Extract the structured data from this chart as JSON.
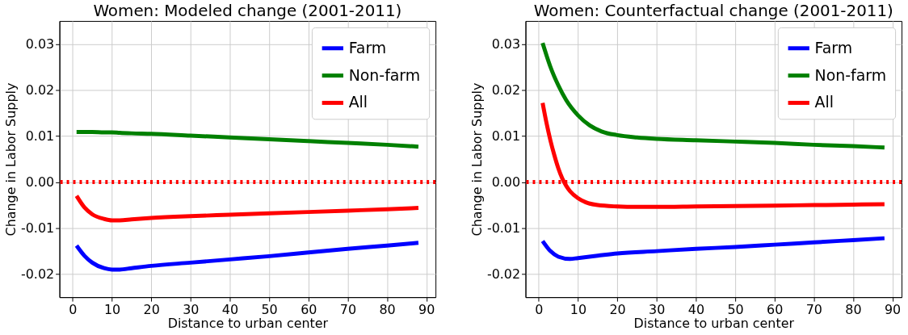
{
  "chart_data": [
    {
      "type": "line",
      "title": "Women: Modeled change (2001-2011)",
      "xlabel": "Distance to urban center",
      "ylabel": "Change in Labor Supply",
      "x": [
        1,
        3,
        5,
        8,
        10,
        12,
        15,
        20,
        30,
        40,
        50,
        60,
        70,
        80,
        88
      ],
      "series": [
        {
          "name": "Farm",
          "color": "#0000ff",
          "values": [
            -0.0138,
            -0.016,
            -0.0175,
            -0.0187,
            -0.019,
            -0.019,
            -0.0187,
            -0.0182,
            -0.0175,
            -0.0168,
            -0.0161,
            -0.0153,
            -0.0145,
            -0.0138,
            -0.0132
          ]
        },
        {
          "name": "Non-farm",
          "color": "#008000",
          "values": [
            0.0109,
            0.0109,
            0.0109,
            0.0108,
            0.0108,
            0.0107,
            0.0106,
            0.0105,
            0.0101,
            0.0097,
            0.0093,
            0.0089,
            0.0085,
            0.0081,
            0.0077
          ]
        },
        {
          "name": "All",
          "color": "#ff0000",
          "values": [
            -0.003,
            -0.0055,
            -0.007,
            -0.008,
            -0.0083,
            -0.0083,
            -0.0081,
            -0.0078,
            -0.0074,
            -0.0071,
            -0.0068,
            -0.0065,
            -0.0062,
            -0.0059,
            -0.0056
          ]
        }
      ],
      "xlim": [
        -3.35,
        92.35
      ],
      "ylim": [
        -0.025,
        0.035
      ],
      "xticks": [
        0,
        10,
        20,
        30,
        40,
        50,
        60,
        70,
        80,
        90
      ],
      "yticks": [
        -0.02,
        -0.01,
        {
          "value": 0,
          "label": "0.00"
        },
        0.01,
        0.02,
        0.03
      ],
      "ref_lines": [
        {
          "axis": "y",
          "value": 0,
          "color": "#ff0000",
          "line_style": "dotted"
        }
      ],
      "grid": true,
      "legend": "top right",
      "line_style": "solid",
      "marker": "none"
    },
    {
      "type": "line",
      "title": "Women: Counterfactual change (2001-2011)",
      "xlabel": "Distance to urban center",
      "ylabel": "Change in Labor Supply",
      "series": [
        {
          "name": "Farm",
          "color": "#0000ff",
          "x": [
            1,
            3,
            5,
            8,
            10,
            15,
            20,
            30,
            40,
            50,
            60,
            70,
            80,
            88
          ],
          "values": [
            -0.0128,
            -0.015,
            -0.0162,
            -0.0167,
            -0.0165,
            -0.016,
            -0.0155,
            -0.015,
            -0.0145,
            -0.0141,
            -0.0136,
            -0.0131,
            -0.0126,
            -0.0122
          ]
        },
        {
          "name": "Non-farm",
          "color": "#008000",
          "x": [
            1,
            2,
            3,
            5,
            7,
            10,
            13,
            16,
            20,
            25,
            30,
            40,
            50,
            60,
            70,
            80,
            88
          ],
          "values": [
            0.0302,
            0.0275,
            0.025,
            0.021,
            0.0178,
            0.0145,
            0.0123,
            0.011,
            0.0102,
            0.0097,
            0.0094,
            0.0091,
            0.0088,
            0.0085,
            0.0081,
            0.0078,
            0.0075
          ]
        },
        {
          "name": "All",
          "color": "#ff0000",
          "x": [
            1,
            2,
            3,
            4,
            5,
            6,
            7,
            8,
            10,
            12,
            15,
            20,
            25,
            30,
            40,
            50,
            60,
            70,
            80,
            88
          ],
          "values": [
            0.0172,
            0.0128,
            0.009,
            0.0058,
            0.003,
            0.0008,
            -0.0008,
            -0.002,
            -0.0035,
            -0.0044,
            -0.005,
            -0.0053,
            -0.0054,
            -0.0054,
            -0.0053,
            -0.0052,
            -0.0051,
            -0.005,
            -0.0049,
            -0.0048
          ]
        }
      ],
      "xlim": [
        -3.35,
        92.35
      ],
      "ylim": [
        -0.025,
        0.035
      ],
      "xticks": [
        0,
        10,
        20,
        30,
        40,
        50,
        60,
        70,
        80,
        90
      ],
      "yticks": [
        -0.02,
        -0.01,
        {
          "value": 0,
          "label": "0.00"
        },
        0.01,
        0.02,
        0.03
      ],
      "ref_lines": [
        {
          "axis": "y",
          "value": 0,
          "color": "#ff0000",
          "line_style": "dotted"
        }
      ],
      "grid": true,
      "legend": "top right",
      "line_style": "solid",
      "marker": "none"
    }
  ]
}
